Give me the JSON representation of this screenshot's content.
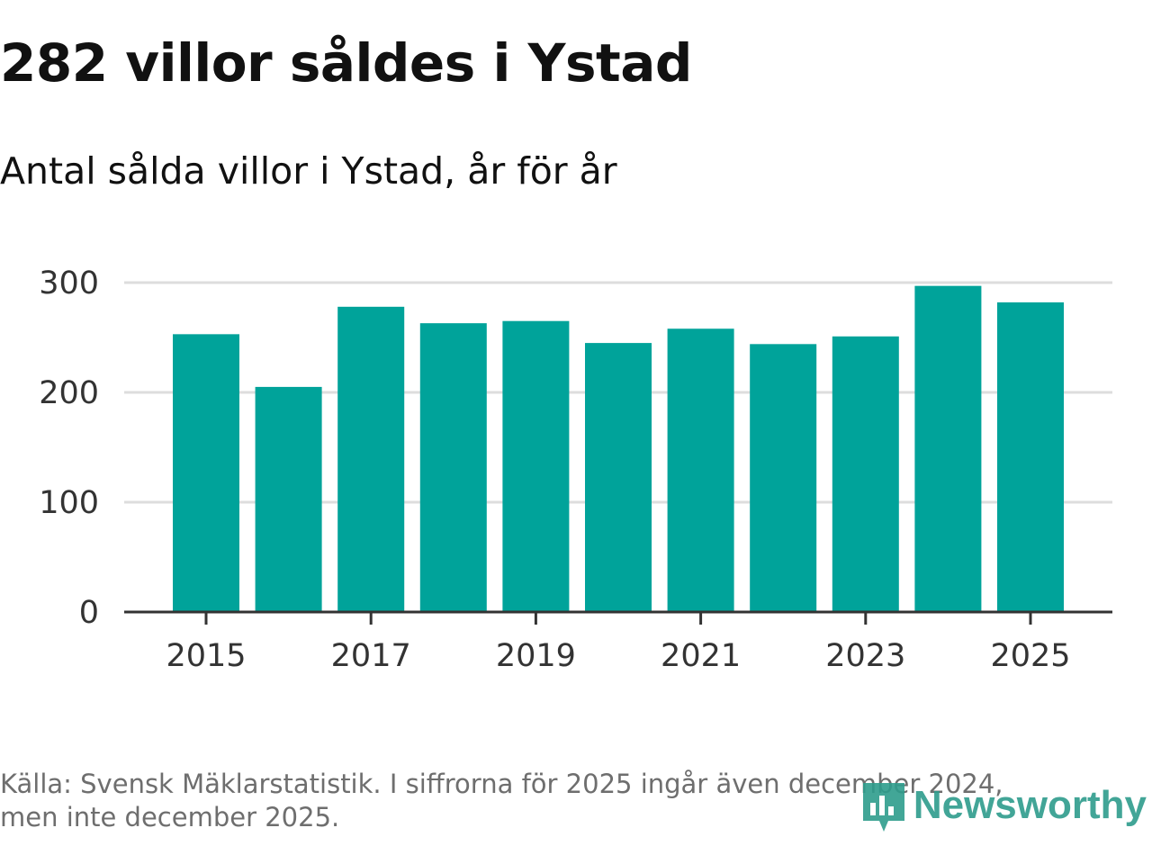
{
  "title": "282 villor såldes i Ystad",
  "subtitle": "Antal sålda villor i Ystad, år för år",
  "source": {
    "line1": "Källa: Svensk Mäklarstatistik. I siffrorna för 2025 ingår även december 2024,",
    "line2": "men inte december 2025."
  },
  "logo": {
    "text": "Newsworthy",
    "icon": "newsworthy-logo-icon"
  },
  "colors": {
    "bar": "#00a39a",
    "grid": "#dddddd",
    "axis": "#333333",
    "logo": "#2e9c8c"
  },
  "chart_data": {
    "type": "bar",
    "title": "Antal sålda villor i Ystad, år för år",
    "xlabel": "",
    "ylabel": "",
    "categories": [
      "2015",
      "2016",
      "2017",
      "2018",
      "2019",
      "2020",
      "2021",
      "2022",
      "2023",
      "2024",
      "2025"
    ],
    "values": [
      253,
      205,
      278,
      263,
      265,
      245,
      258,
      244,
      251,
      297,
      282
    ],
    "ylim": [
      0,
      300
    ],
    "yticks": [
      0,
      100,
      200,
      300
    ],
    "xtick_labels": [
      "2015",
      "2017",
      "2019",
      "2021",
      "2023",
      "2025"
    ],
    "grid": true,
    "legend": "none"
  }
}
